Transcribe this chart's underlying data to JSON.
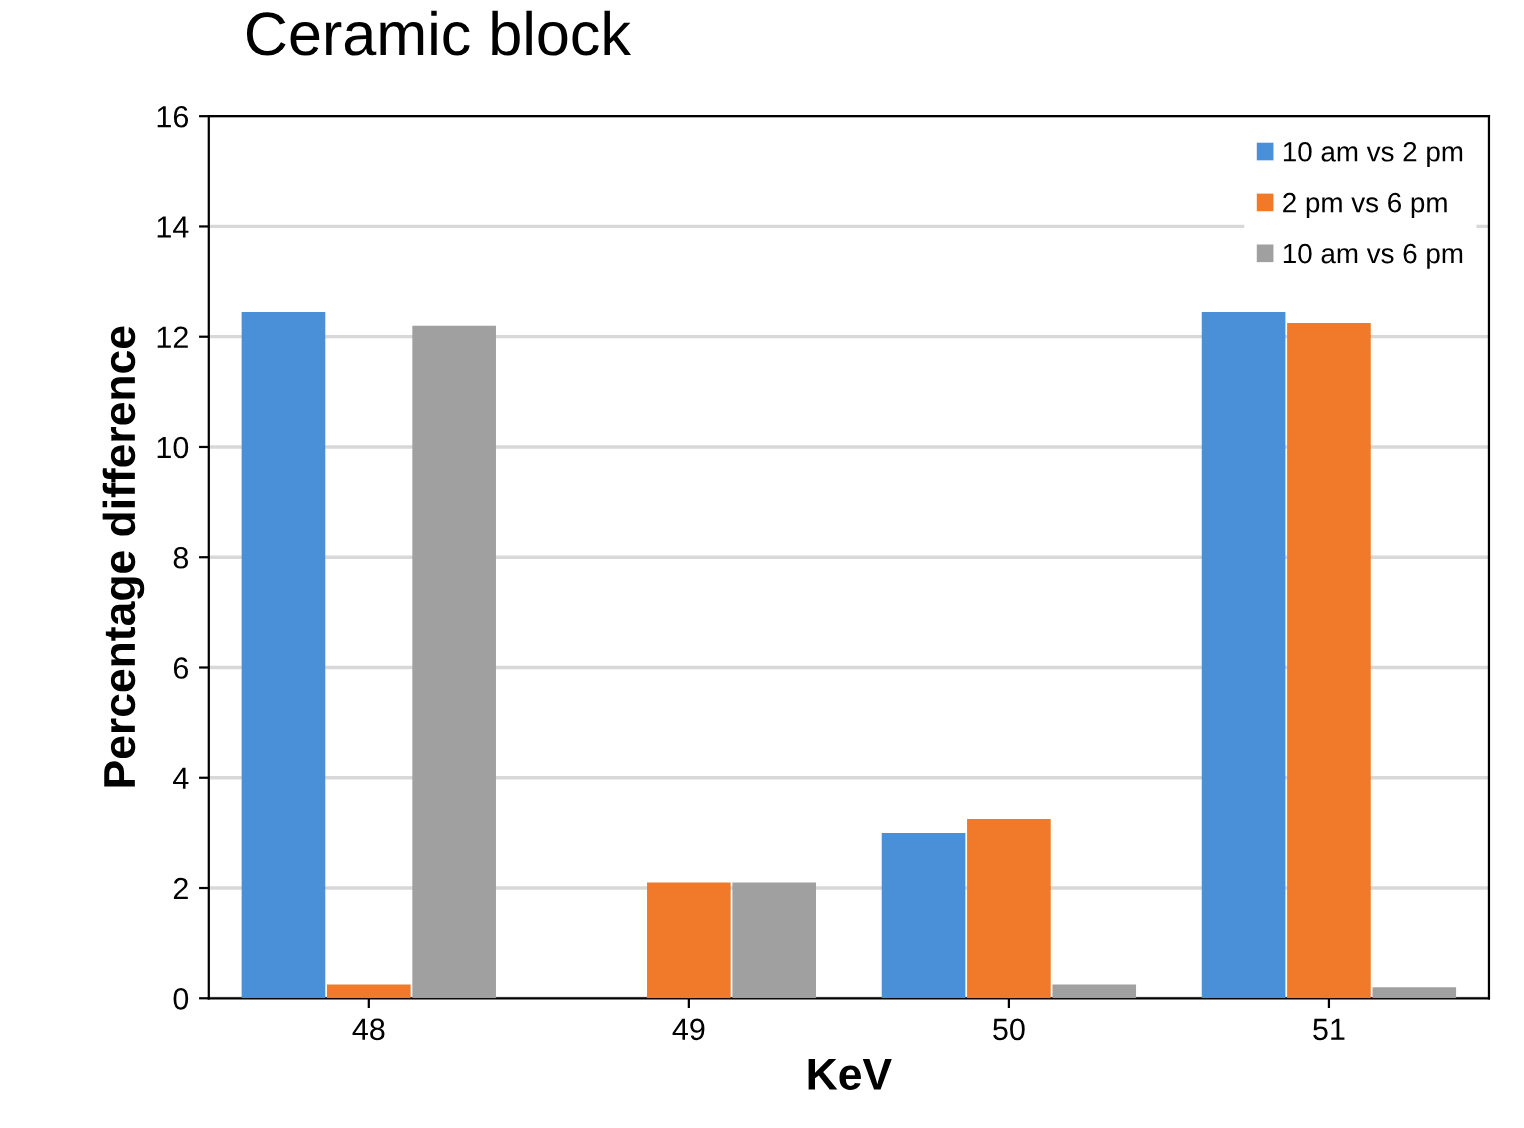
{
  "chart_data": {
    "type": "bar",
    "title": "Ceramic block",
    "xlabel": "KeV",
    "ylabel": "Percentage difference",
    "categories": [
      "48",
      "49",
      "50",
      "51"
    ],
    "series": [
      {
        "name": "10 am vs 2 pm",
        "color": "#4a90d9",
        "values": [
          12.45,
          0,
          3.0,
          12.45
        ]
      },
      {
        "name": "2 pm vs 6 pm",
        "color": "#f07a2a",
        "values": [
          0.25,
          2.1,
          3.25,
          12.25
        ]
      },
      {
        "name": "10 am vs 6 pm",
        "color": "#a0a0a0",
        "values": [
          12.2,
          2.1,
          0.25,
          0.2
        ]
      }
    ],
    "ylim": [
      0,
      16
    ],
    "yticks": [
      0,
      2,
      4,
      6,
      8,
      10,
      12,
      14,
      16
    ],
    "grid": "y",
    "legend": "top right"
  }
}
